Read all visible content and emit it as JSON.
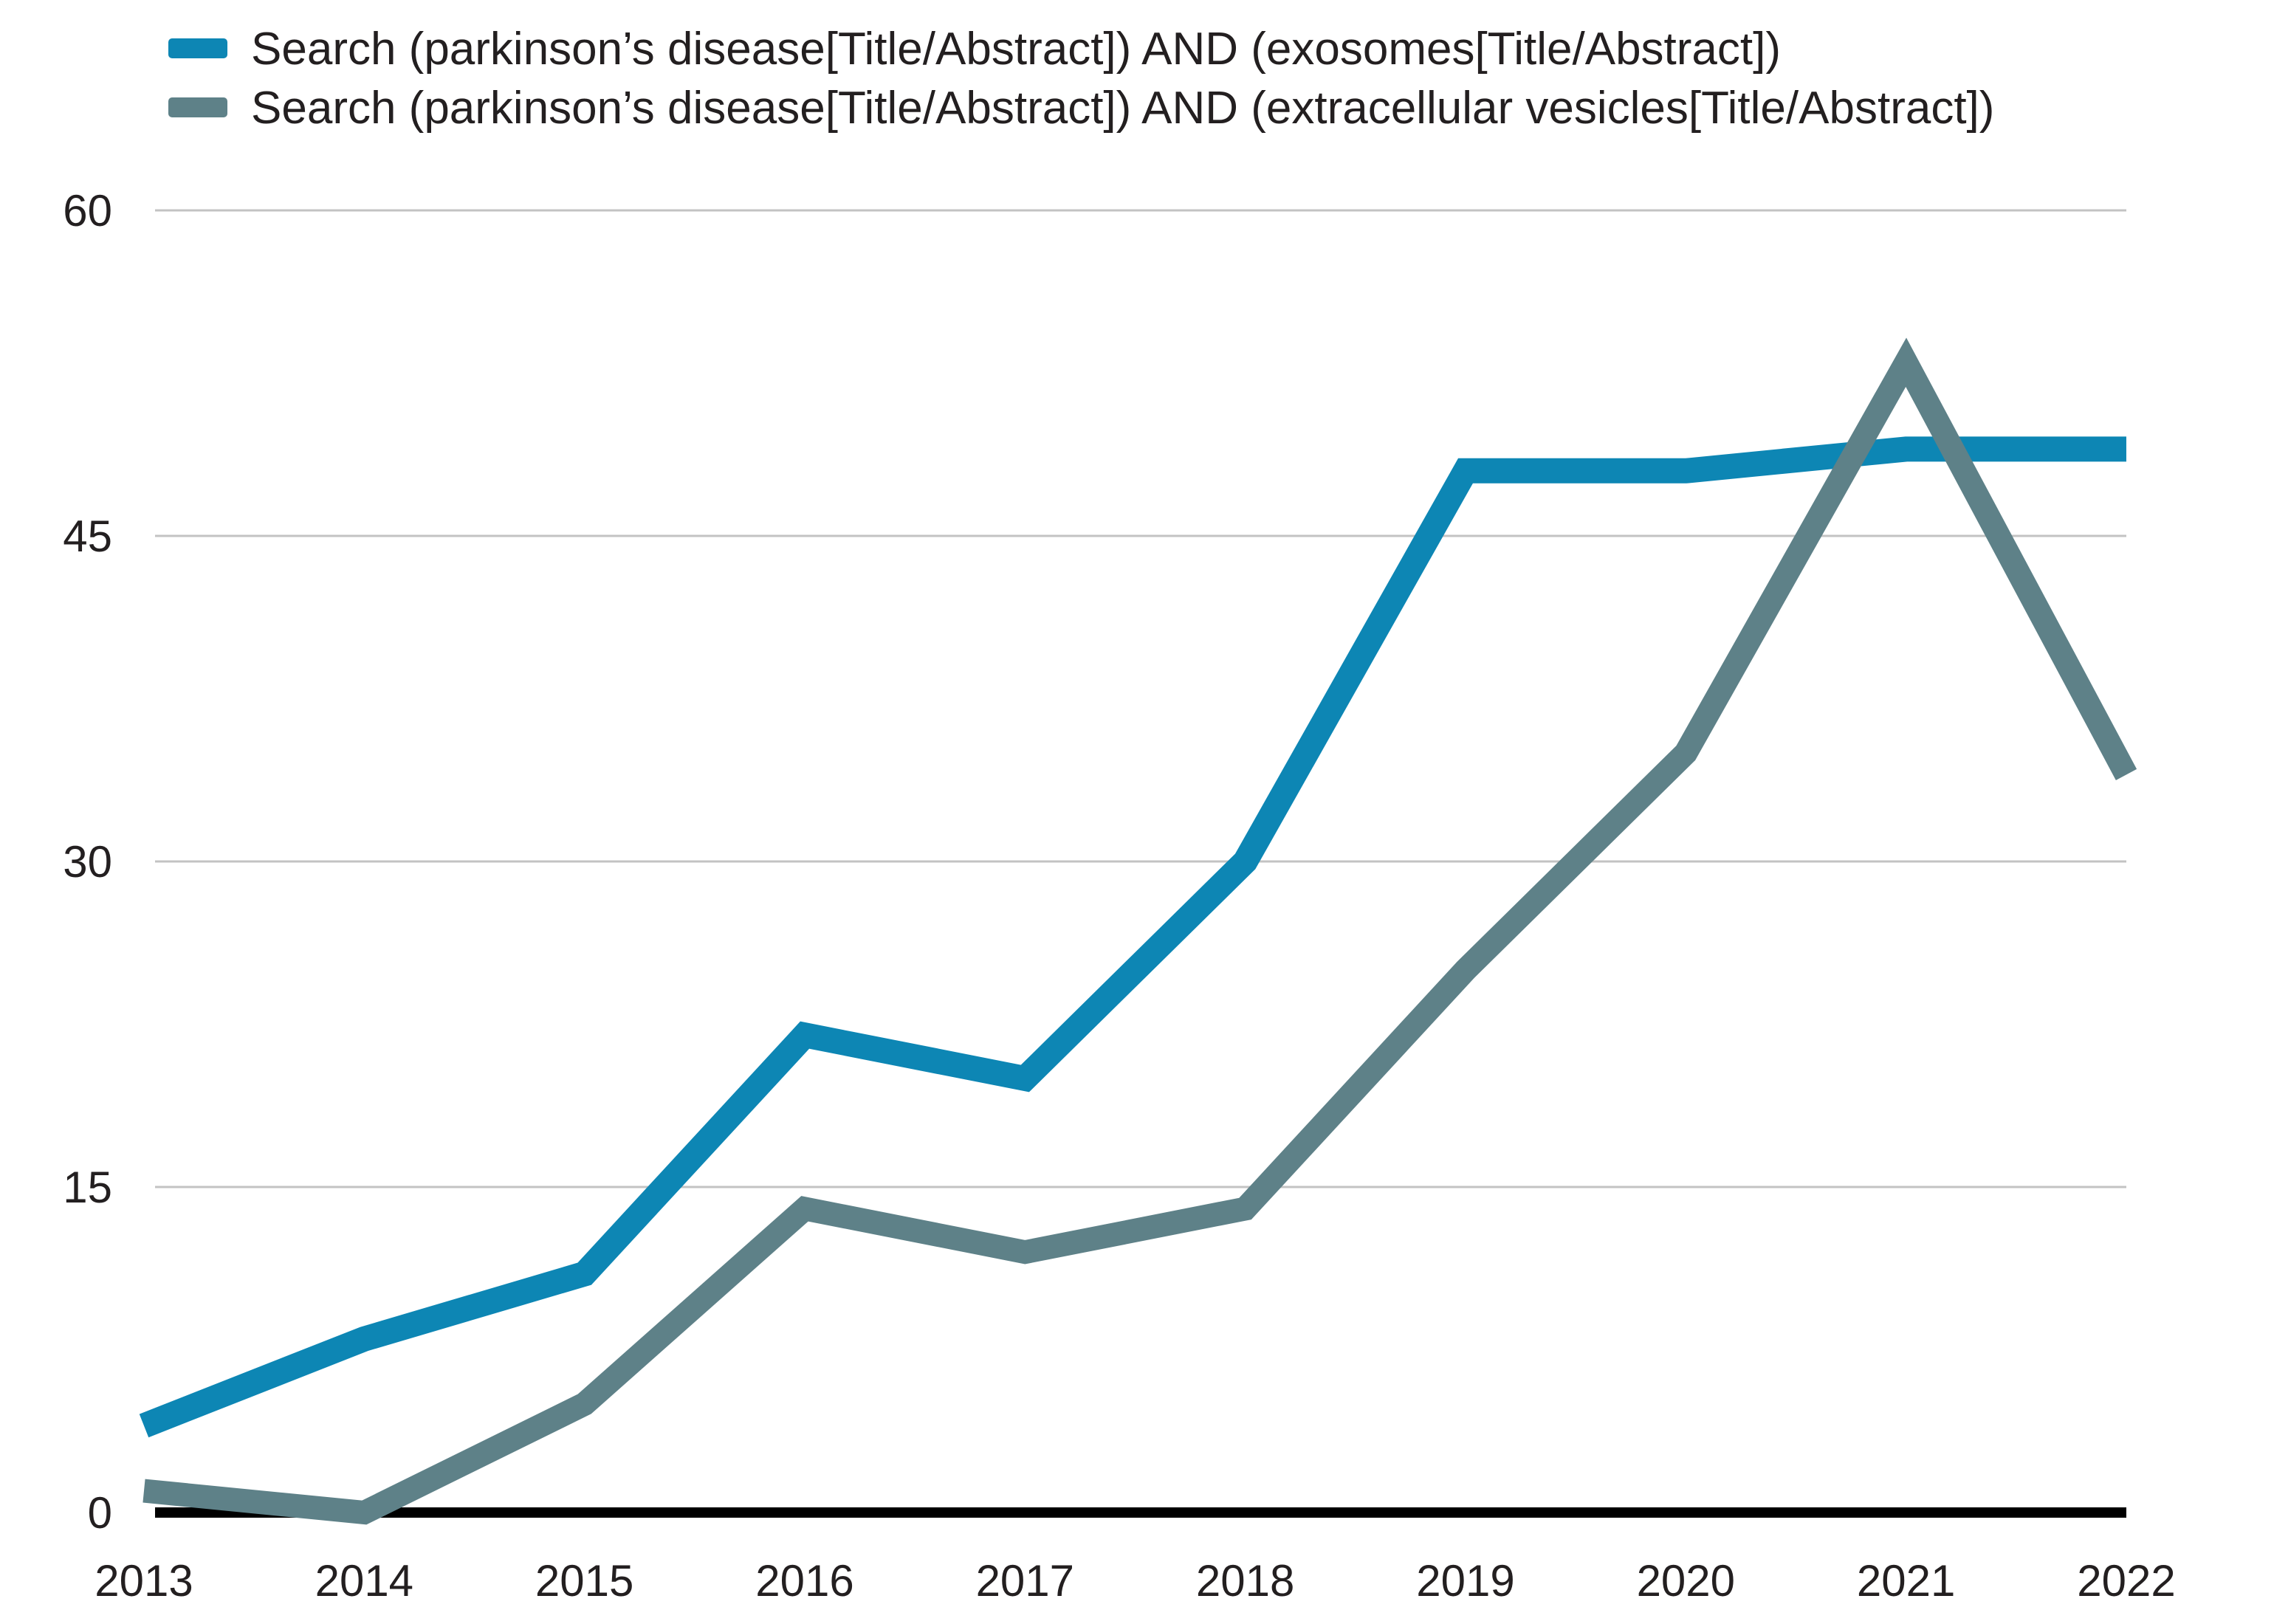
{
  "chart_data": {
    "type": "line",
    "title": "",
    "xlabel": "",
    "ylabel": "",
    "categories": [
      "2013",
      "2014",
      "2015",
      "2016",
      "2017",
      "2018",
      "2019",
      "2020",
      "2021",
      "2022"
    ],
    "series": [
      {
        "name": "Search (parkinson’s disease[Title/Abstract]) AND (exosomes[Title/Abstract])",
        "color": "#0d86b4",
        "values": [
          4,
          8,
          11,
          22,
          20,
          30,
          48,
          48,
          49,
          49
        ]
      },
      {
        "name": "Search (parkinson’s disease[Title/Abstract]) AND (extracellular vesicles[Title/Abstract])",
        "color": "#5e8188",
        "values": [
          1,
          0,
          5,
          14,
          12,
          14,
          25,
          35,
          53,
          34
        ]
      }
    ],
    "ylim": [
      0,
      60
    ],
    "yticks": [
      0,
      15,
      30,
      45,
      60
    ],
    "grid": true,
    "grid_color": "#c3c3c3",
    "axis_color": "#000000",
    "text_color": "#231f20",
    "legend_position": "top-left"
  }
}
